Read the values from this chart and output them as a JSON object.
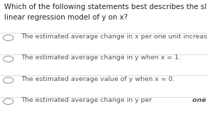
{
  "background_color": "#ffffff",
  "question_line1": "Which of the following statements best describes the slope in the simple",
  "question_line2": "linear regression model of y on x?",
  "options": [
    "The estimated average change in x per one unit increase in y.",
    "The estimated average change in y when x = 1.",
    "The estimated average value of y when x = 0.",
    "The estimated average change in y per one unit increase in x."
  ],
  "last_option_plain": "The estimated average change in y per ",
  "last_option_bold": "one unit increase in x",
  "last_option_period": ".",
  "separator_color": "#cccccc",
  "text_color": "#555555",
  "question_color": "#222222",
  "circle_color": "#999999",
  "font_size_question": 7.5,
  "font_size_option": 6.8,
  "fig_width": 2.97,
  "fig_height": 1.69,
  "dpi": 100
}
